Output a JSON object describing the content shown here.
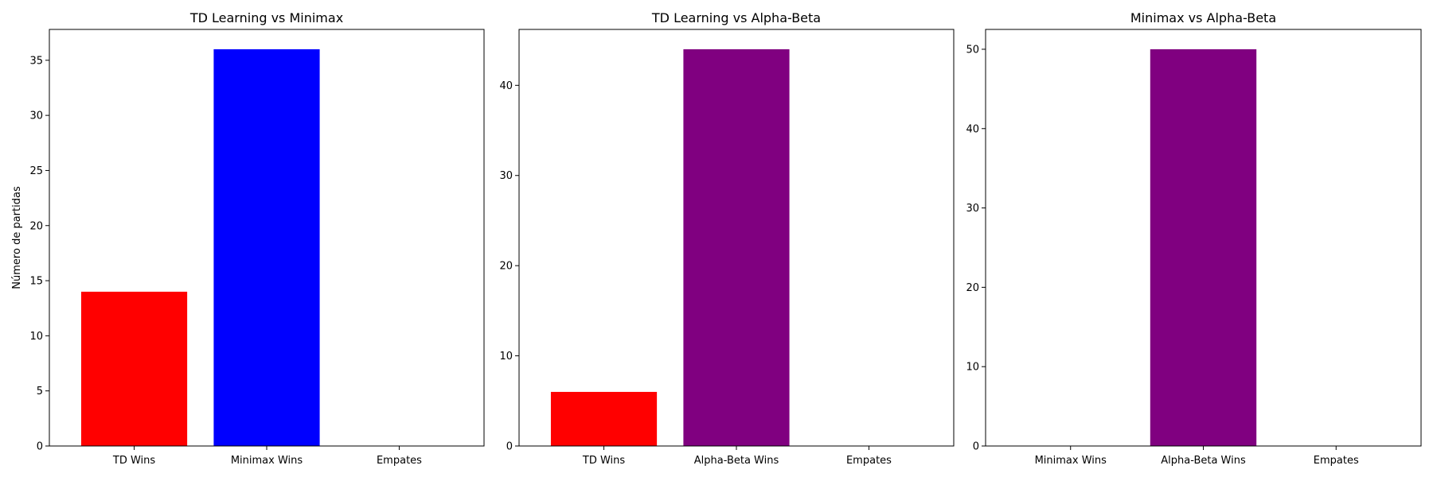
{
  "chart_data": [
    {
      "type": "bar",
      "title": "TD Learning vs Minimax",
      "ylabel": "Número de partidas",
      "xlabel": "",
      "categories": [
        "TD Wins",
        "Minimax Wins",
        "Empates"
      ],
      "values": [
        14,
        36,
        0
      ],
      "colors": [
        "#ff0000",
        "#0000ff",
        "#008000"
      ],
      "ylim": [
        0,
        37.8
      ],
      "yticks": [
        0,
        5,
        10,
        15,
        20,
        25,
        30,
        35
      ],
      "grid": false
    },
    {
      "type": "bar",
      "title": "TD Learning vs Alpha-Beta",
      "ylabel": "",
      "xlabel": "",
      "categories": [
        "TD Wins",
        "Alpha-Beta Wins",
        "Empates"
      ],
      "values": [
        6,
        44,
        0
      ],
      "colors": [
        "#ff0000",
        "#800080",
        "#008000"
      ],
      "ylim": [
        0,
        46.2
      ],
      "yticks": [
        0,
        10,
        20,
        30,
        40
      ],
      "grid": false
    },
    {
      "type": "bar",
      "title": "Minimax vs Alpha-Beta",
      "ylabel": "",
      "xlabel": "",
      "categories": [
        "Minimax Wins",
        "Alpha-Beta Wins",
        "Empates"
      ],
      "values": [
        0,
        50,
        0
      ],
      "colors": [
        "#0000ff",
        "#800080",
        "#008000"
      ],
      "ylim": [
        0,
        52.5
      ],
      "yticks": [
        0,
        10,
        20,
        30,
        40,
        50
      ],
      "grid": false
    }
  ]
}
